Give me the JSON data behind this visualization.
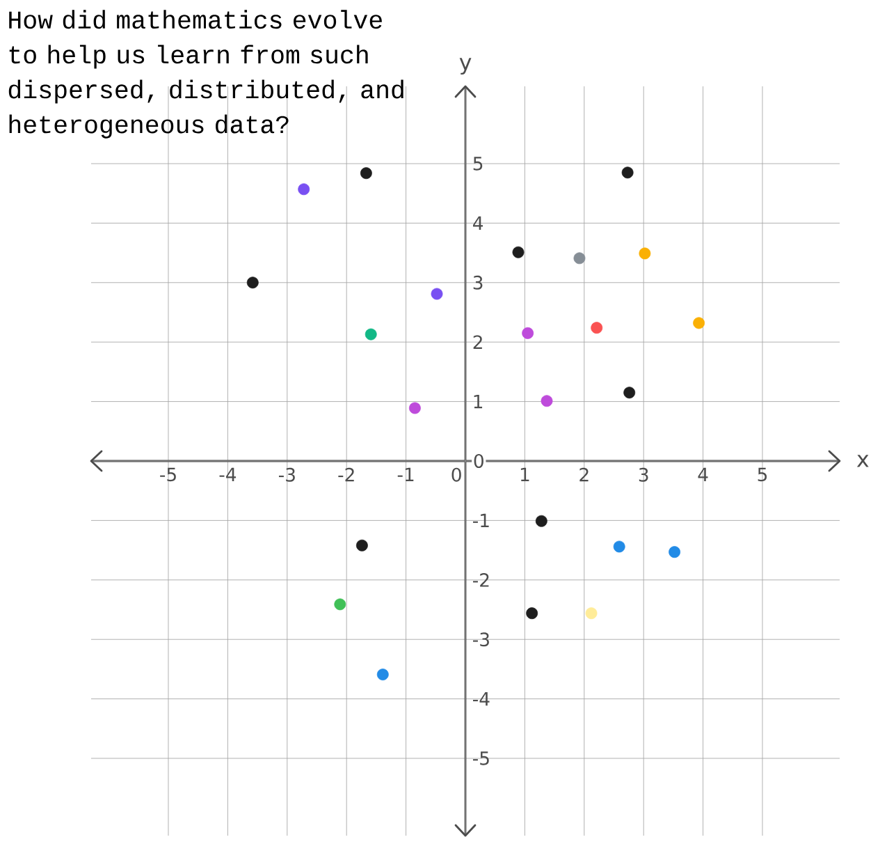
{
  "chart_data": {
    "type": "scatter",
    "title": "How did mathematics evolve to help us learn from such dispersed, distributed, and heterogeneous data?",
    "xlabel": "x",
    "ylabel": "y",
    "xlim": [
      -6.3,
      6.3
    ],
    "ylim": [
      -6.3,
      6.3
    ],
    "xticks": [
      -5,
      -4,
      -3,
      -2,
      -1,
      0,
      1,
      2,
      3,
      4,
      5
    ],
    "yticks": [
      -5,
      -4,
      -3,
      -2,
      -1,
      0,
      1,
      2,
      3,
      4,
      5
    ],
    "grid": true,
    "marker": "circle",
    "x": [
      -2.72,
      -1.67,
      2.73,
      -3.58,
      -0.48,
      0.89,
      1.92,
      3.02,
      -1.59,
      1.05,
      2.21,
      3.93,
      -0.85,
      1.37,
      2.76,
      1.28,
      -1.74,
      2.59,
      3.52,
      -2.11,
      1.12,
      2.12,
      -1.39
    ],
    "values": [
      4.57,
      4.84,
      4.85,
      3.0,
      2.81,
      3.51,
      3.41,
      3.49,
      2.13,
      2.15,
      2.24,
      2.32,
      0.89,
      1.01,
      1.15,
      -1.01,
      -1.42,
      -1.44,
      -1.53,
      -2.41,
      -2.56,
      -2.56,
      -3.59
    ],
    "colors": [
      "#7950f2",
      "#1e1e1e",
      "#1e1e1e",
      "#1e1e1e",
      "#7950f2",
      "#1e1e1e",
      "#868e96",
      "#fab005",
      "#12b886",
      "#be4bdb",
      "#fa5252",
      "#fab005",
      "#be4bdb",
      "#be4bdb",
      "#1e1e1e",
      "#1e1e1e",
      "#1e1e1e",
      "#228be6",
      "#228be6",
      "#40c057",
      "#1e1e1e",
      "#ffec99",
      "#228be6"
    ]
  }
}
